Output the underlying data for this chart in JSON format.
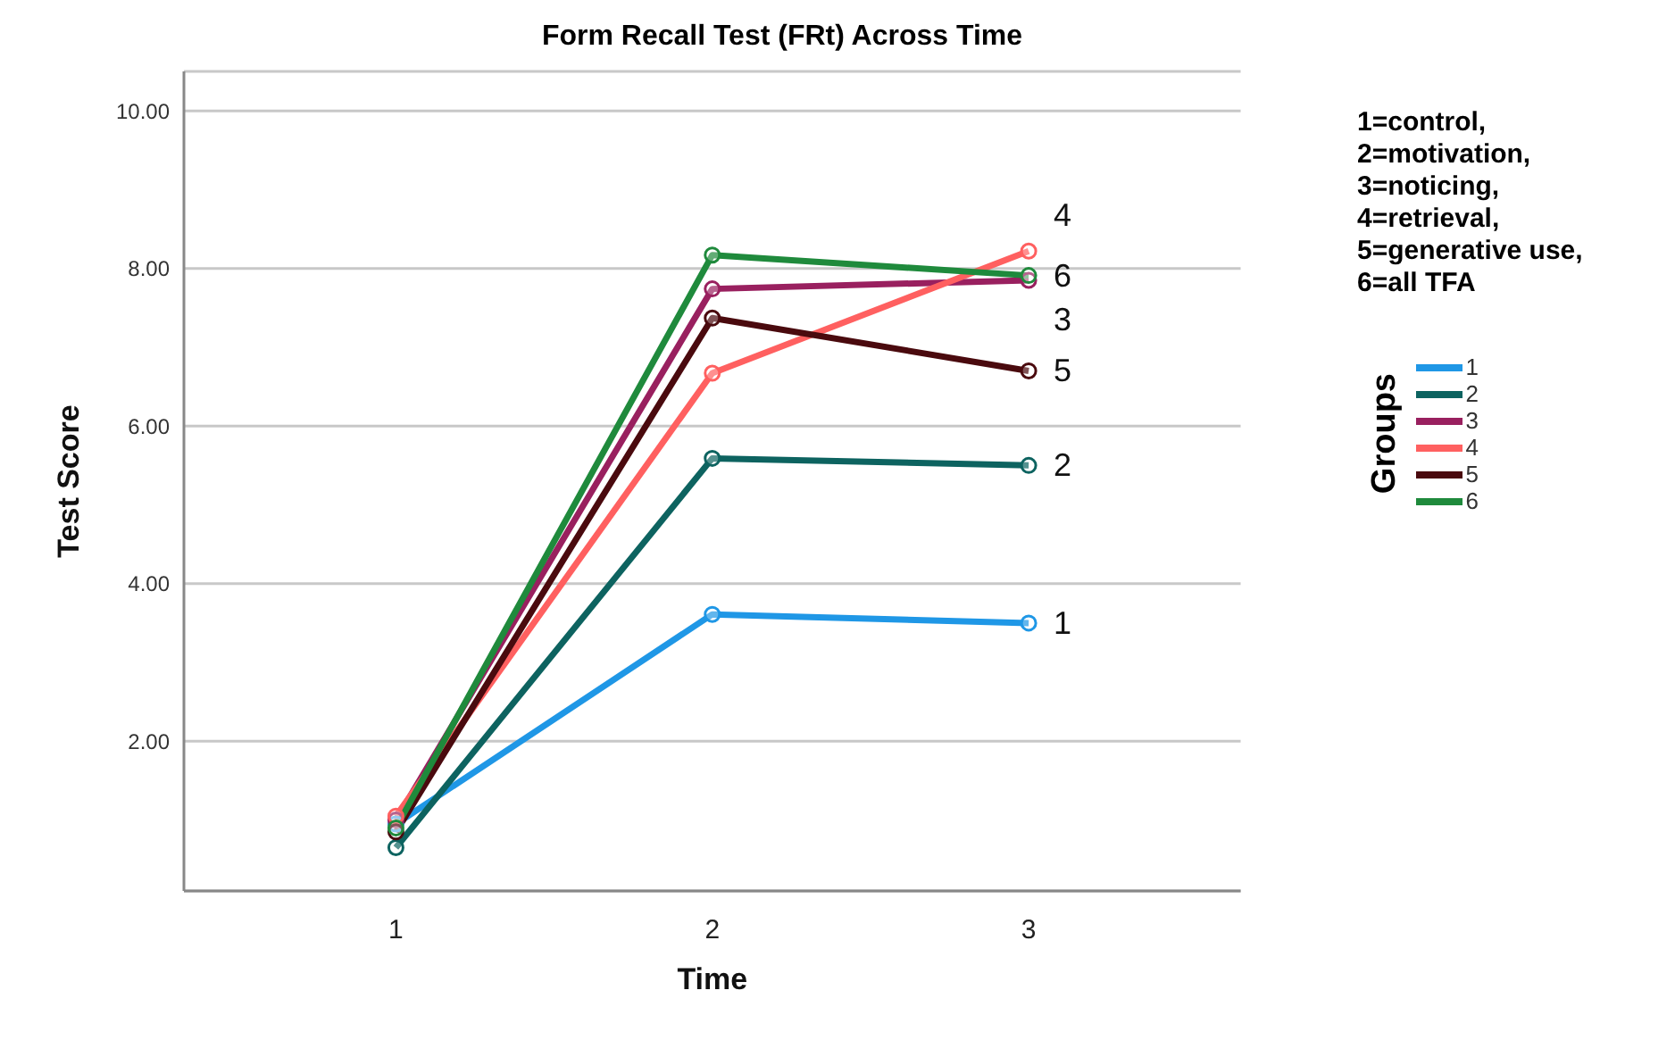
{
  "chart_data": {
    "type": "line",
    "title": "Form Recall Test (FRt) Across Time",
    "xlabel": "Time",
    "ylabel": "Test Score",
    "legend_title": "Groups",
    "annotations": [
      "1=control,\n2=motivation,\n3=noticing,\n4=retrieval,\n5=generative use,\n6=all TFA"
    ],
    "categories": [
      "1",
      "2",
      "3"
    ],
    "series": [
      {
        "name": "1",
        "color": "#1f97e6",
        "values": [
          0.95,
          3.61,
          3.5
        ]
      },
      {
        "name": "2",
        "color": "#0d6360",
        "values": [
          0.65,
          5.59,
          5.5
        ]
      },
      {
        "name": "3",
        "color": "#99205f",
        "values": [
          1.0,
          7.74,
          7.85
        ]
      },
      {
        "name": "4",
        "color": "#ff6060",
        "values": [
          1.05,
          6.67,
          8.22
        ]
      },
      {
        "name": "5",
        "color": "#4a0a0e",
        "values": [
          0.85,
          7.37,
          6.7
        ]
      },
      {
        "name": "6",
        "color": "#1f8a3c",
        "values": [
          0.9,
          8.17,
          7.91
        ]
      }
    ],
    "ylim": [
      0.1,
      10.5
    ],
    "yticks": [
      {
        "value": 2,
        "label": "2.00"
      },
      {
        "value": 4,
        "label": "4.00"
      },
      {
        "value": 6,
        "label": "6.00"
      },
      {
        "value": 8,
        "label": "8.00"
      },
      {
        "value": 10,
        "label": "10.00"
      }
    ],
    "grid": "y",
    "legend": "right",
    "marker": "circle",
    "line_style": "solid"
  }
}
